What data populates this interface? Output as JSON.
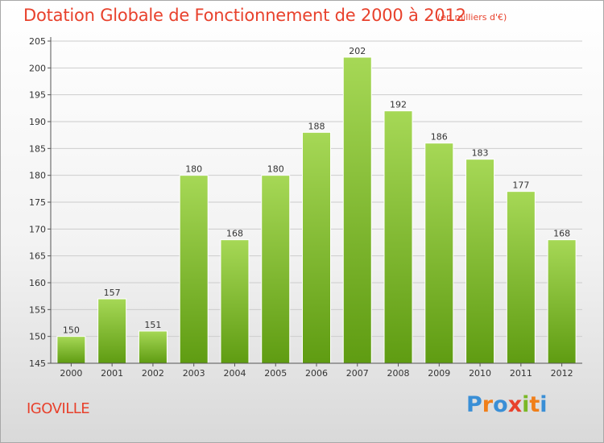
{
  "title": "Dotation Globale de Fonctionnement de 2000 à 2012",
  "subtitle": "(en milliers d'€)",
  "commune": "IGOVILLE",
  "logo": {
    "letters": [
      "P",
      "r",
      "o",
      "x",
      "i",
      "t",
      "i"
    ],
    "colors": [
      "#3a8fd6",
      "#f07f1a",
      "#3a8fd6",
      "#e8412c",
      "#7ab827",
      "#f07f1a",
      "#3a8fd6"
    ]
  },
  "colors": {
    "title": "#e8412c",
    "bar_light": "#a6d856",
    "bar_dark": "#5f9c12",
    "grid": "#cccccc",
    "axis": "#555555"
  },
  "chart_data": {
    "type": "bar",
    "categories": [
      "2000",
      "2001",
      "2002",
      "2003",
      "2004",
      "2005",
      "2006",
      "2007",
      "2008",
      "2009",
      "2010",
      "2011",
      "2012"
    ],
    "values": [
      150,
      157,
      151,
      180,
      168,
      180,
      188,
      202,
      192,
      186,
      183,
      177,
      168
    ],
    "ylim": [
      145,
      205
    ],
    "yticks": [
      145,
      150,
      155,
      160,
      165,
      170,
      175,
      180,
      185,
      190,
      195,
      200,
      205
    ],
    "grid": true,
    "data_labels": true
  }
}
